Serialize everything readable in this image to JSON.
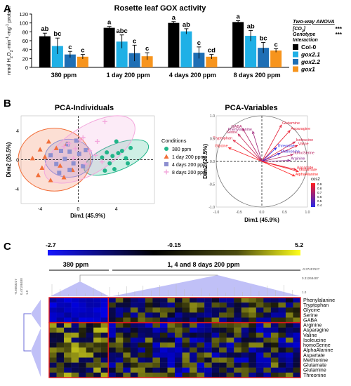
{
  "panels": {
    "a": {
      "label": "A"
    },
    "b": {
      "label": "B"
    },
    "c": {
      "label": "C"
    }
  },
  "chart_data": [
    {
      "type": "bar",
      "title": "Rosette leaf GOX activity",
      "ylabel": "nmol H2O2·min-1·mg-1 protein",
      "ylim": [
        0,
        120
      ],
      "yticks": [
        0,
        20,
        40,
        60,
        80,
        100,
        120
      ],
      "categories": [
        "380 ppm",
        "1 day 200 ppm",
        "4 days 200 ppm",
        "8 days 200 ppm"
      ],
      "series": [
        {
          "name": "Col-0",
          "color": "#000000",
          "values": [
            70,
            89,
            100,
            102
          ],
          "errors": [
            7,
            3,
            3,
            3
          ],
          "letters": [
            "ab",
            "a",
            "a",
            "a"
          ]
        },
        {
          "name": "gox2.1",
          "color": "#1fb0e6",
          "values": [
            48,
            58,
            81,
            71
          ],
          "errors": [
            18,
            15,
            6,
            12
          ],
          "letters": [
            "bc",
            "abc",
            "ab",
            "ab"
          ]
        },
        {
          "name": "gox2.2",
          "color": "#1f6fb5",
          "values": [
            29,
            32,
            33,
            44
          ],
          "errors": [
            7,
            18,
            13,
            12
          ],
          "letters": [
            "c",
            "c",
            "c",
            "bc"
          ]
        },
        {
          "name": "gox1",
          "color": "#f7941d",
          "values": [
            24,
            25,
            24,
            38
          ],
          "errors": [
            5,
            8,
            5,
            4
          ],
          "letters": [
            "c",
            "c",
            "cd",
            "c"
          ]
        }
      ],
      "anova": {
        "title": "Two-way ANOVA",
        "rows": [
          {
            "label": "[CO2]",
            "stars": "***"
          },
          {
            "label": "Genotype",
            "stars": "***"
          },
          {
            "label": "Interaction",
            "stars": ""
          }
        ]
      }
    },
    {
      "type": "scatter",
      "title": "PCA-Individuals",
      "xlabel": "Dim1 (45.9%)",
      "ylabel": "Dim2 (26.5%)",
      "xlim": [
        -6,
        8
      ],
      "ylim": [
        -6,
        6
      ],
      "xticks": [
        -4,
        0,
        4
      ],
      "yticks": [
        -4,
        0,
        4
      ],
      "legend_title": "Conditions",
      "series": [
        {
          "name": "380 ppm",
          "color": "#21b589",
          "marker": "circle",
          "points": [
            [
              2.5,
              0.3
            ],
            [
              3,
              1
            ],
            [
              3.3,
              -0.5
            ],
            [
              3.8,
              -1.3
            ],
            [
              4.2,
              0.9
            ],
            [
              4.6,
              1.2
            ],
            [
              5,
              0.2
            ],
            [
              5.2,
              -0.5
            ],
            [
              5.5,
              1.6
            ],
            [
              4,
              2.5
            ],
            [
              2.8,
              -1.5
            ],
            [
              3.6,
              0.5
            ]
          ],
          "ellipse": {
            "cx": 4,
            "cy": 0.3,
            "rx": 3.6,
            "ry": 1.8,
            "angle": -22
          }
        },
        {
          "name": "1 day 200 ppm",
          "color": "#f26f3a",
          "marker": "triangle",
          "points": [
            [
              -4.8,
              0.2
            ],
            [
              -4.2,
              -2.1
            ],
            [
              -3.5,
              0.4
            ],
            [
              -3.1,
              2.5
            ],
            [
              -2.9,
              -2.8
            ],
            [
              -2.3,
              1.6
            ],
            [
              -1.9,
              -0.8
            ],
            [
              -1.2,
              2.2
            ],
            [
              -3.8,
              -1.1
            ],
            [
              -1.5,
              -2.4
            ],
            [
              -0.6,
              -1.4
            ],
            [
              -4,
              1.4
            ]
          ],
          "ellipse": {
            "cx": -2.5,
            "cy": 0,
            "rx": 3.8,
            "ry": 4.3,
            "angle": 0
          }
        },
        {
          "name": "4 days 200 ppm",
          "color": "#8d8fd0",
          "marker": "square",
          "points": [
            [
              -2.9,
              0.6
            ],
            [
              -2.3,
              -0.6
            ],
            [
              -1.8,
              1.2
            ],
            [
              -1.4,
              0.1
            ],
            [
              -0.9,
              1.1
            ],
            [
              -0.5,
              -0.5
            ],
            [
              0.1,
              0.8
            ],
            [
              0.5,
              -0.9
            ],
            [
              -1.1,
              2.1
            ],
            [
              -2,
              -1.8
            ],
            [
              -0.2,
              2.6
            ],
            [
              0.8,
              1.3
            ],
            [
              -0.9,
              -1.4
            ]
          ],
          "ellipse": {
            "cx": -1,
            "cy": 0.2,
            "rx": 2.5,
            "ry": 2.6,
            "angle": 0
          }
        },
        {
          "name": "8 days 200 ppm",
          "color": "#f3a6dc",
          "marker": "plus",
          "points": [
            [
              -1,
              2.2
            ],
            [
              -0.3,
              1.5
            ],
            [
              0.5,
              3
            ],
            [
              1.2,
              1.2
            ],
            [
              2,
              2.5
            ],
            [
              2.8,
              5.2
            ],
            [
              0.8,
              -0.6
            ],
            [
              -0.5,
              0.2
            ],
            [
              1.8,
              0.6
            ],
            [
              0.2,
              2.7
            ],
            [
              -1.5,
              1.8
            ],
            [
              2.5,
              -0.3
            ]
          ],
          "ellipse": {
            "cx": 1.2,
            "cy": 1.4,
            "rx": 5.4,
            "ry": 3.2,
            "angle": -32
          }
        }
      ]
    },
    {
      "type": "scatter",
      "title": "PCA-Variables",
      "xlabel": "Dim1 (45.9%)",
      "ylabel": "Dim2 (26.5%)",
      "xlim": [
        -1,
        1
      ],
      "ylim": [
        -1,
        1
      ],
      "xticks": [
        -1.0,
        -0.5,
        0.0,
        0.5,
        1.0
      ],
      "yticks": [
        -1.0,
        -0.5,
        0.0,
        0.5,
        1.0
      ],
      "legend_title": "cos2",
      "legend_ticks": [
        0.9,
        0.8,
        0.7,
        0.6,
        0.5,
        0.4
      ],
      "arrows": [
        {
          "label": "Glutamine",
          "x": 0.43,
          "y": 0.8,
          "cos2": 0.83
        },
        {
          "label": "Asparagine",
          "x": 0.62,
          "y": 0.68,
          "cos2": 0.85
        },
        {
          "label": "GABA",
          "x": -0.42,
          "y": 0.72,
          "cos2": 0.7
        },
        {
          "label": "Serine",
          "x": -0.52,
          "y": 0.6,
          "cos2": 0.75
        },
        {
          "label": "Phenylalanine",
          "x": -0.2,
          "y": 0.66,
          "cos2": 0.65
        },
        {
          "label": "Tryptophan",
          "x": -0.63,
          "y": 0.47,
          "cos2": 0.82
        },
        {
          "label": "Glycine",
          "x": -0.73,
          "y": 0.3,
          "cos2": 0.88
        },
        {
          "label": "Isoleucine",
          "x": 0.73,
          "y": 0.43,
          "cos2": 0.8
        },
        {
          "label": "Valine",
          "x": 0.78,
          "y": 0.35,
          "cos2": 0.82
        },
        {
          "label": "Threonine",
          "x": 0.32,
          "y": 0.3,
          "cos2": 0.35
        },
        {
          "label": "Methionine",
          "x": 0.4,
          "y": 0.18,
          "cos2": 0.4
        },
        {
          "label": "homoSerine",
          "x": 0.68,
          "y": 0.15,
          "cos2": 0.72
        },
        {
          "label": "Arginine",
          "x": 0.62,
          "y": 0.02,
          "cos2": 0.6
        },
        {
          "label": "Aspartate",
          "x": 0.75,
          "y": -0.18,
          "cos2": 0.85
        },
        {
          "label": "Glutamate",
          "x": 0.8,
          "y": -0.22,
          "cos2": 0.87
        },
        {
          "label": "AlphaAlanine",
          "x": 0.72,
          "y": -0.32,
          "cos2": 0.9
        }
      ]
    },
    {
      "type": "heatmap",
      "colorbar": {
        "min": "-2.7",
        "mid": "-0.15",
        "max": "5.2"
      },
      "groups": [
        "380 ppm",
        "1, 4 and 8 days 200 ppm"
      ],
      "tree_labels": [
        "-0.6083227",
        "0.47188488",
        "1.0",
        "-0.37457627",
        "0.31268487",
        "1.0"
      ],
      "rows": [
        "Phenylalanine",
        "Tryptophan",
        "Glycine",
        "Serine",
        "GABA",
        "Arginine",
        "Asparagine",
        "Valine",
        "Isoleucine",
        "homoSerine",
        "AlphaAlanine",
        "Aspartate",
        "Methionine",
        "Glutamate",
        "Glutamine",
        "Threonine"
      ]
    }
  ]
}
